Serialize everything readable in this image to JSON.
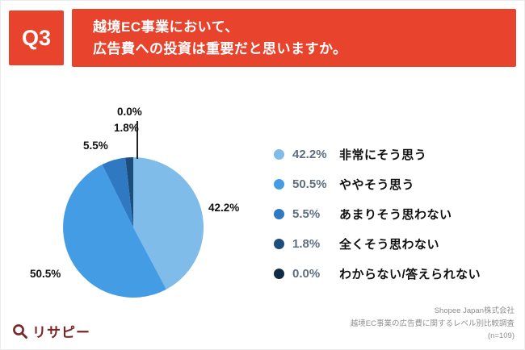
{
  "header": {
    "q_label": "Q3",
    "title_line1": "越境EC事業において、",
    "title_line2": "広告費への投資は重要だと思いますか。"
  },
  "chart_data": {
    "type": "pie",
    "title": "越境EC事業において、広告費への投資は重要だと思いますか。",
    "categories": [
      "非常にそう思う",
      "ややそう思う",
      "あまりそう思わない",
      "全くそう思わない",
      "わからない/答えられない"
    ],
    "values": [
      42.2,
      50.5,
      5.5,
      1.8,
      0.0
    ],
    "value_labels": [
      "42.2%",
      "50.5%",
      "5.5%",
      "1.8%",
      "0.0%"
    ],
    "colors": [
      "#7FBCEA",
      "#439CE4",
      "#2F78C2",
      "#1C4E7D",
      "#102C44"
    ],
    "start_angle_deg": -90,
    "direction": "clockwise",
    "legend_position": "right",
    "n": "(n=109)"
  },
  "legend": {
    "items": [
      {
        "percent": "42.2%",
        "label": "非常にそう思う"
      },
      {
        "percent": "50.5%",
        "label": "ややそう思う"
      },
      {
        "percent": "5.5%",
        "label": "あまりそう思わない"
      },
      {
        "percent": "1.8%",
        "label": "全くそう思わない"
      },
      {
        "percent": "0.0%",
        "label": "わからない/答えられない"
      }
    ]
  },
  "footer": {
    "logo_text": "リサピー",
    "source_lines": [
      "Shopee Japan株式会社",
      "越境EC事業の広告費に関するレベル別比較調査",
      "(n=109)"
    ]
  },
  "colors": {
    "accent_red": "#E8432D",
    "legend_percent_text": "#5E6E80",
    "logo_maroon": "#7B2626",
    "source_gray": "#8F8F8F"
  }
}
